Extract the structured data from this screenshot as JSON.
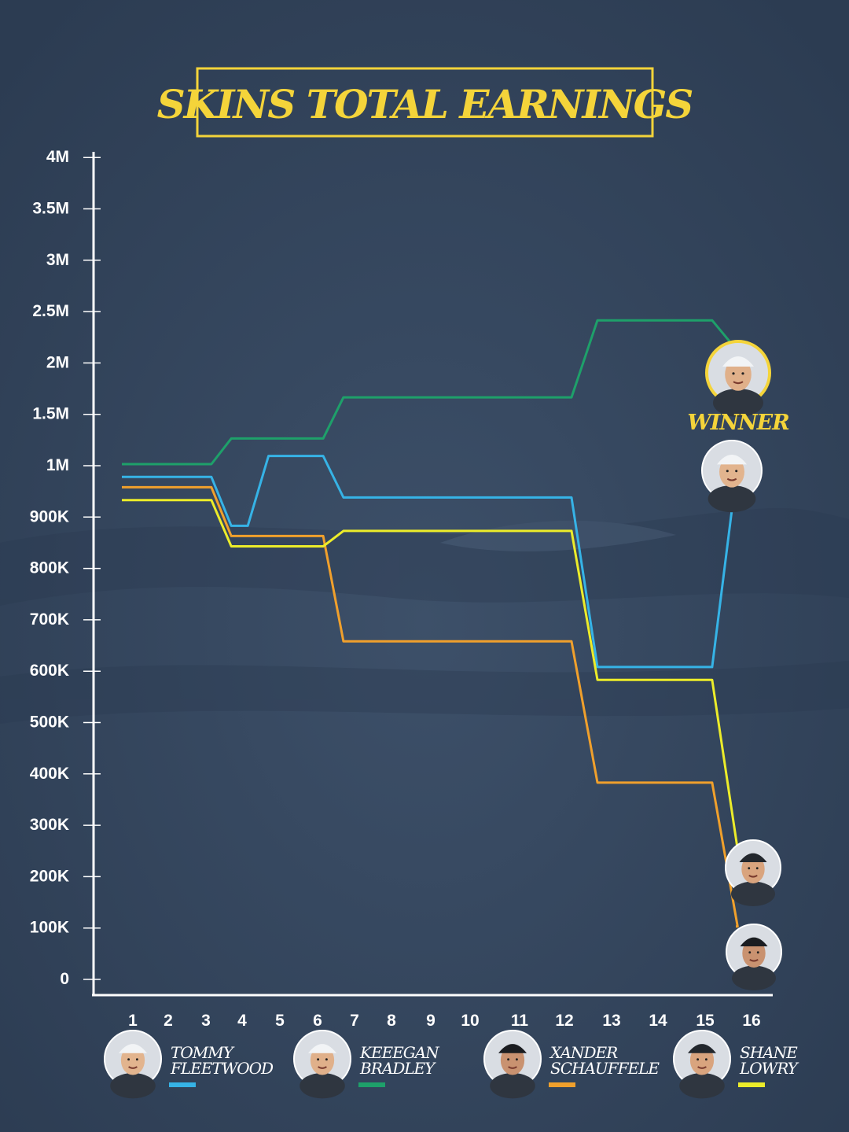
{
  "chart_data": {
    "type": "line",
    "title": "SKINS TOTAL EARNINGS",
    "x": [
      1,
      2,
      3,
      4,
      5,
      6,
      7,
      8,
      9,
      10,
      11,
      12,
      13,
      14,
      15,
      16
    ],
    "x_tick_labels": [
      "1",
      "2",
      "3",
      "4",
      "5",
      "6",
      "7",
      "8",
      "9",
      "10",
      "11",
      "12",
      "13",
      "14",
      "15",
      "16"
    ],
    "y_ticks": [
      0,
      100000,
      200000,
      300000,
      400000,
      500000,
      600000,
      700000,
      800000,
      900000,
      1000000,
      1500000,
      2000000,
      2500000,
      3000000,
      3500000,
      4000000
    ],
    "y_tick_labels": [
      "0",
      "100K",
      "200K",
      "300K",
      "400K",
      "500K",
      "600K",
      "700K",
      "800K",
      "900K",
      "1M",
      "1.5M",
      "2M",
      "2.5M",
      "3M",
      "3.5M",
      "4M"
    ],
    "y_scale": "piecewise (100K steps up to 1M, 500K steps above 1M)",
    "ylim": [
      0,
      4000000
    ],
    "grid": false,
    "legend_position": "bottom",
    "annotation": "WINNER",
    "series": [
      {
        "name": "TOMMY FLEETWOOD",
        "color": "#36b3e6",
        "values": [
          975000,
          975000,
          975000,
          880000,
          1080000,
          1080000,
          935000,
          935000,
          935000,
          935000,
          935000,
          935000,
          605000,
          605000,
          605000,
          1000000
        ]
      },
      {
        "name": "KEEEGAN BRADLEY",
        "color": "#1ea06a",
        "values": [
          1000000,
          1000000,
          1000000,
          1250000,
          1250000,
          1250000,
          1650000,
          1650000,
          1650000,
          1650000,
          1650000,
          1650000,
          2400000,
          2400000,
          2400000,
          2100000
        ]
      },
      {
        "name": "XANDER SCHAUFFELE",
        "color": "#f0a02c",
        "values": [
          955000,
          955000,
          955000,
          860000,
          860000,
          860000,
          655000,
          655000,
          655000,
          655000,
          655000,
          655000,
          380000,
          380000,
          380000,
          100000
        ]
      },
      {
        "name": "SHANE LOWRY",
        "color": "#ecec2a",
        "values": [
          930000,
          930000,
          930000,
          840000,
          840000,
          840000,
          870000,
          870000,
          870000,
          870000,
          870000,
          870000,
          580000,
          580000,
          580000,
          250000
        ]
      }
    ]
  },
  "colors": {
    "background": "#34465f",
    "accent": "#f4d43a",
    "axis": "#ffffff"
  },
  "icons": [
    "avatar-fleetwood",
    "avatar-bradley",
    "avatar-schauffele",
    "avatar-lowry"
  ]
}
